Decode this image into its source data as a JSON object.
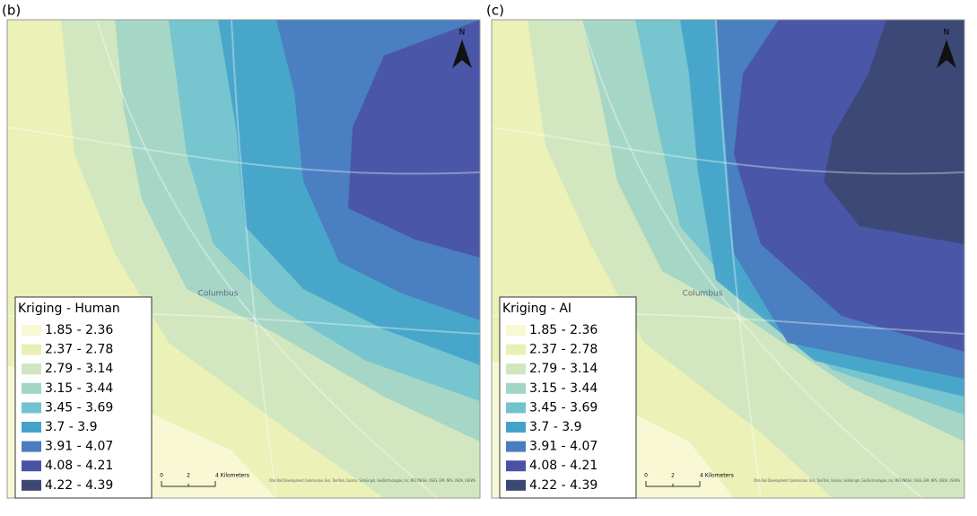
{
  "panels": [
    {
      "label": "(b)",
      "north": "N",
      "place": "Columbus",
      "scale": [
        "0",
        "2",
        "4 Kilometers"
      ],
      "attribution": "Ohio Rail Development Commission, Esri, TomTom, Garmin, SafeGraph, GeoTechnologies, Inc, METI/NASA, USGS, EPA, NPS, USDA, USFWS",
      "legend": {
        "title": "Kriging - Human",
        "classes": [
          "1.85 - 2.36",
          "2.37 - 2.78",
          "2.79 - 3.14",
          "3.15 - 3.44",
          "3.45 - 3.69",
          "3.7 - 3.9",
          "3.91 - 4.07",
          "4.08 - 4.21",
          "4.22 - 4.39"
        ]
      }
    },
    {
      "label": "(c)",
      "north": "N",
      "place": "Columbus",
      "scale": [
        "0",
        "2",
        "4 Kilometers"
      ],
      "attribution": "Ohio Rail Development Commission, Esri, TomTom, Garmin, SafeGraph, GeoTechnologies, Inc, METI/NASA, USGS, EPA, NPS, USDA, USFWS",
      "legend": {
        "title": "Kriging - AI",
        "classes": [
          "1.85 - 2.36",
          "2.37 - 2.78",
          "2.79 - 3.14",
          "3.15 - 3.44",
          "3.45 - 3.69",
          "3.7 - 3.9",
          "3.91 - 4.07",
          "4.08 - 4.21",
          "4.22 - 4.39"
        ]
      }
    }
  ],
  "class_colors": [
    "#f8f8d4",
    "#e9f0b4",
    "#cfe6bf",
    "#a2d5c6",
    "#72c3cf",
    "#45a3cb",
    "#4b7cc0",
    "#4a52a6",
    "#3b4872"
  ]
}
